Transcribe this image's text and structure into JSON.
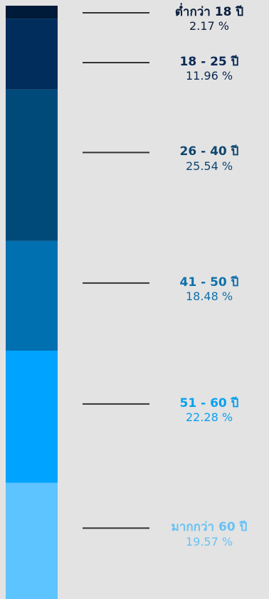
{
  "chart_data": {
    "type": "bar",
    "orientation": "stacked-vertical",
    "unit": "%",
    "categories": [
      "ต่ำกว่า 18 ปี",
      "18 - 25 ปี",
      "26 - 40 ปี",
      "41 - 50 ปี",
      "51 - 60 ปี",
      "มากกว่า 60 ปี"
    ],
    "values": [
      2.17,
      11.96,
      25.54,
      18.48,
      22.28,
      19.57
    ],
    "segments": [
      {
        "label": "ต่ำกว่า 18 ปี",
        "value": 2.17,
        "value_text": "2.17 %",
        "color": "#001a3a",
        "text_color": "#0a1e3c"
      },
      {
        "label": "18 - 25 ปี",
        "value": 11.96,
        "value_text": "11.96 %",
        "color": "#002d5c",
        "text_color": "#0a2a55"
      },
      {
        "label": "26 - 40 ปี",
        "value": 25.54,
        "value_text": "25.54 %",
        "color": "#004a7a",
        "text_color": "#0e466f"
      },
      {
        "label": "41 - 50 ปี",
        "value": 18.48,
        "value_text": "18.48 %",
        "color": "#0070b0",
        "text_color": "#1070aa"
      },
      {
        "label": "51 - 60 ปี",
        "value": 22.28,
        "value_text": "22.28 %",
        "color": "#00a3ff",
        "text_color": "#0aa0f0"
      },
      {
        "label": "มากกว่า 60 ปี",
        "value": 19.57,
        "value_text": "19.57 %",
        "color": "#5ec4ff",
        "text_color": "#68c2f5"
      }
    ],
    "connector_color": "#333333",
    "background": "#e3e3e3"
  }
}
